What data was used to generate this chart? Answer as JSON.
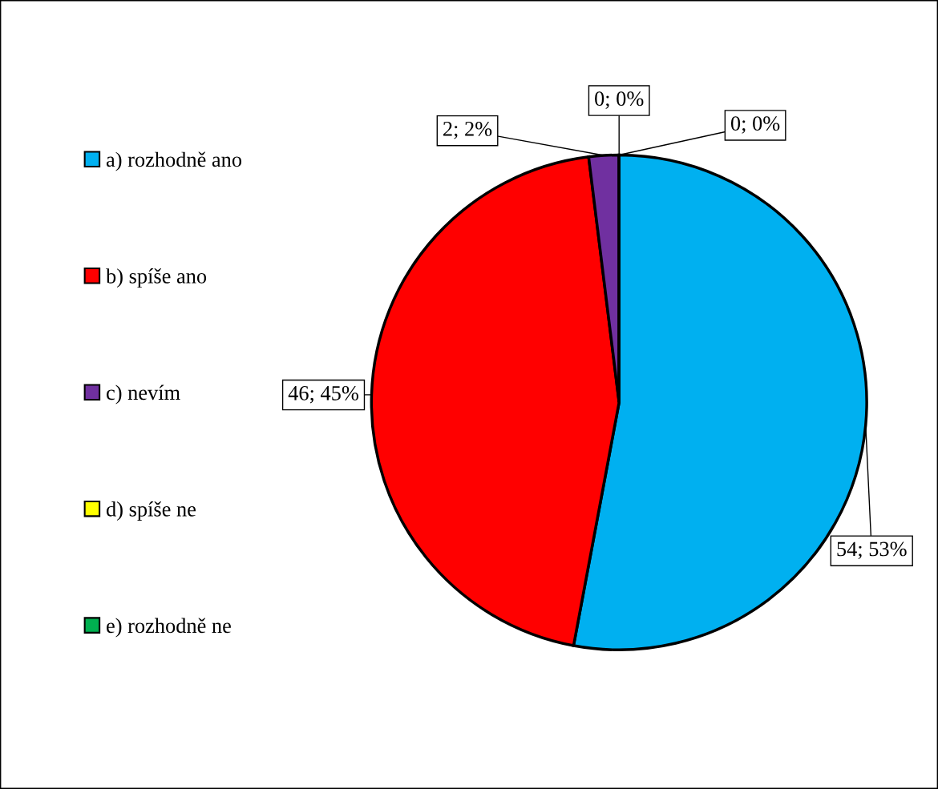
{
  "chart_data": {
    "type": "pie",
    "categories": [
      "a) rozhodně ano",
      "b) spíše ano",
      "c) nevím",
      "d) spíše ne",
      "e) rozhodně ne"
    ],
    "values": [
      54,
      46,
      2,
      0,
      0
    ],
    "value_labels": [
      "54; 53%",
      "46; 45%",
      "2; 2%",
      "0; 0%",
      "0; 0%"
    ],
    "colors": [
      "#00b0f0",
      "#ff0000",
      "#7030a0",
      "#ffff00",
      "#00b050"
    ],
    "legend": "left"
  }
}
